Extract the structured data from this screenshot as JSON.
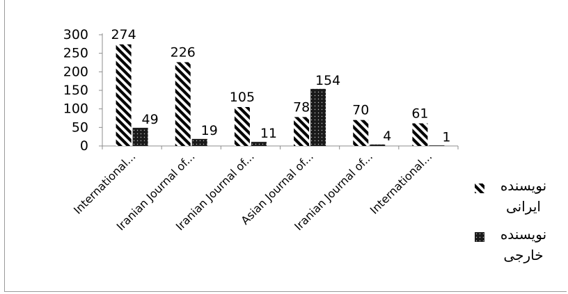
{
  "chart_data": {
    "type": "bar",
    "title": "",
    "xlabel": "",
    "ylabel": "",
    "ylim": [
      0,
      300
    ],
    "yticks": [
      0,
      50,
      100,
      150,
      200,
      250,
      300
    ],
    "grid": false,
    "legend_position": "right",
    "categories": [
      "International...",
      "Iranian Journal of...",
      "Iranian Journal of...",
      "Asian Journal of...",
      "Iranian Journal of...",
      "International..."
    ],
    "series": [
      {
        "name": "نویسنده ایرانی",
        "pattern": "diagonal-stripes",
        "color": "#000000",
        "values": [
          274,
          226,
          105,
          78,
          70,
          61
        ]
      },
      {
        "name": "نویسنده خارجی",
        "pattern": "dotted-dark",
        "color": "#1a1a1a",
        "values": [
          49,
          19,
          11,
          154,
          4,
          1
        ]
      }
    ]
  }
}
